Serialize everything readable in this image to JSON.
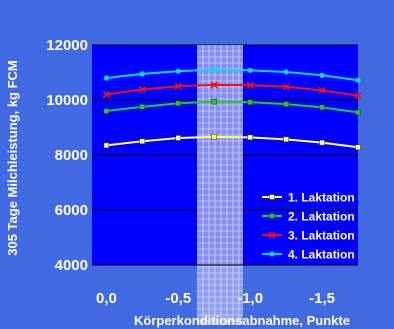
{
  "colors": {
    "background": "#4169E1",
    "plot_area": "#0000FF",
    "band_fill": "#9FA9F0",
    "band_grid": "#FFFFFF",
    "axis_text": "#FFFFFF"
  },
  "chart_data": {
    "type": "line",
    "title": "",
    "xlabel": "Körperkonditionsabnahme, Punkte",
    "ylabel": "305 Tage Milchleistung, kg FCM",
    "xlim": [
      0.1,
      -1.75
    ],
    "ylim": [
      4000,
      12000
    ],
    "x_reversed": true,
    "x_ticks": [
      0.0,
      -0.5,
      -1.0,
      -1.5
    ],
    "x_tick_labels": [
      "0,0",
      "-0,5",
      "-1,0",
      "-1,5"
    ],
    "y_ticks": [
      4000,
      6000,
      8000,
      10000,
      12000
    ],
    "y_tick_labels": [
      "4000",
      "6000",
      "8000",
      "10000",
      "12000"
    ],
    "grid": "horizontal",
    "highlight_band": {
      "x_from": -0.63,
      "x_to": -0.95
    },
    "legend_position": "bottom-right",
    "x": [
      0.0,
      -0.25,
      -0.5,
      -0.75,
      -1.0,
      -1.25,
      -1.5,
      -1.75
    ],
    "series": [
      {
        "name": "1. Laktation",
        "color": "#FFFF66",
        "marker": "square",
        "values": [
          8350,
          8500,
          8620,
          8660,
          8640,
          8570,
          8450,
          8280
        ]
      },
      {
        "name": "2. Laktation",
        "color": "#22CC22",
        "marker": "square",
        "values": [
          9600,
          9750,
          9880,
          9940,
          9920,
          9850,
          9730,
          9550
        ]
      },
      {
        "name": "3. Laktation",
        "color": "#EE1111",
        "marker": "x",
        "values": [
          10200,
          10380,
          10500,
          10550,
          10540,
          10480,
          10350,
          10160
        ]
      },
      {
        "name": "4. Laktation",
        "color": "#00DDFF",
        "marker": "circle",
        "values": [
          10800,
          10950,
          11050,
          11100,
          11080,
          11020,
          10900,
          10720
        ]
      }
    ]
  }
}
